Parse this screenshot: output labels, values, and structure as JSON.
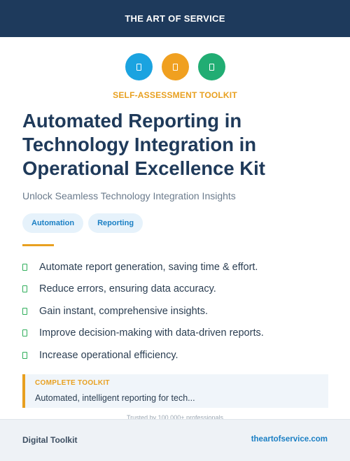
{
  "header": {
    "brand": "THE ART OF SERVICE",
    "background": "#1e3a5c"
  },
  "icons": [
    {
      "name": "document-icon",
      "color": "#1ba3e0"
    },
    {
      "name": "document-icon",
      "color": "#f0a020"
    },
    {
      "name": "document-icon",
      "color": "#21ad73"
    }
  ],
  "eyebrow": {
    "text": "SELF-ASSESSMENT TOOLKIT",
    "color": "#e8a020"
  },
  "title": "Automated Reporting in Technology Integration in Operational Excellence Kit",
  "subtitle": "Unlock Seamless Technology Integration Insights",
  "tags": [
    "Automation",
    "Reporting"
  ],
  "accent_color": "#e8a020",
  "benefits": [
    "Automate report generation, saving time & effort.",
    "Reduce errors, ensuring data accuracy.",
    "Gain instant, comprehensive insights.",
    "Improve decision-making with data-driven reports.",
    "Increase operational efficiency."
  ],
  "callout": {
    "label": "COMPLETE TOOLKIT",
    "text": "Automated, intelligent reporting for tech..."
  },
  "trusted_text": "Trusted by 100,000+ professionals",
  "footer": {
    "left": "Digital Toolkit",
    "right": "theartofservice.com"
  }
}
